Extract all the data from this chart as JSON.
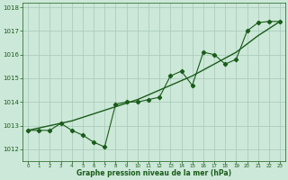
{
  "hours": [
    0,
    1,
    2,
    3,
    4,
    5,
    6,
    7,
    8,
    9,
    10,
    11,
    12,
    13,
    14,
    15,
    16,
    17,
    18,
    19,
    20,
    21,
    22,
    23
  ],
  "pressure": [
    1012.8,
    1012.8,
    1012.8,
    1013.1,
    1012.8,
    1012.6,
    1012.3,
    1012.1,
    1013.9,
    1014.0,
    1014.0,
    1014.1,
    1014.2,
    1015.1,
    1015.3,
    1014.7,
    1016.1,
    1016.0,
    1015.6,
    1015.8,
    1017.0,
    1017.35,
    1017.4,
    1017.4
  ],
  "pressure_smooth": [
    1012.8,
    1012.9,
    1013.0,
    1013.1,
    1013.2,
    1013.35,
    1013.5,
    1013.65,
    1013.8,
    1013.95,
    1014.1,
    1014.3,
    1014.5,
    1014.7,
    1014.9,
    1015.1,
    1015.35,
    1015.6,
    1015.85,
    1016.1,
    1016.45,
    1016.8,
    1017.1,
    1017.4
  ],
  "line_color": "#1a5c1a",
  "bg_color": "#cce8d8",
  "grid_color": "#a8c8b8",
  "xlabel": "Graphe pression niveau de la mer (hPa)",
  "ylim": [
    1011.5,
    1018.2
  ],
  "xlim": [
    -0.5,
    23.5
  ],
  "yticks": [
    1012,
    1013,
    1014,
    1015,
    1016,
    1017,
    1018
  ],
  "xticks": [
    0,
    1,
    2,
    3,
    4,
    5,
    6,
    7,
    8,
    9,
    10,
    11,
    12,
    13,
    14,
    15,
    16,
    17,
    18,
    19,
    20,
    21,
    22,
    23
  ]
}
